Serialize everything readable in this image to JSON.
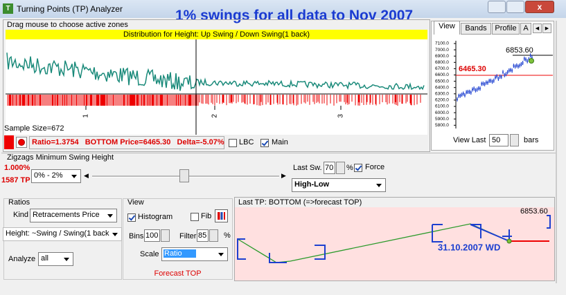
{
  "window": {
    "title": "Turning Points (TP) Analyzer"
  },
  "heading": "1% swings for all data to Nov 2007",
  "distribution": {
    "hint": "Drag mouse to choose active zones",
    "title": "Distribution for Height: Up Swing / Down Swing(1 back)",
    "axis_labels": [
      "1",
      "2",
      "3"
    ],
    "sample_size": "Sample Size=672",
    "status": "Ratio=1.3754   BOTTOM Price=6465.30   Delta=-5.07%",
    "lbc": "LBC",
    "main": "Main"
  },
  "right_panel": {
    "tabs": [
      "View",
      "Bands",
      "Profile",
      "A"
    ],
    "y_labels": [
      "7100.0",
      "7000.0",
      "6900.0",
      "6800.0",
      "6700.0",
      "6600.0",
      "6500.0",
      "6400.0",
      "6300.0",
      "6200.0",
      "6100.0",
      "6000.0",
      "5900.0",
      "5800.0"
    ],
    "top_price": "6853.60",
    "bottom_price": "6465.30",
    "view_last": "View Last",
    "bars_value": "50",
    "bars": "bars"
  },
  "zigzag": {
    "title": "Zigzags Minimum Swing Height",
    "percent": "1.000%",
    "tp_count": "1587 TP",
    "range": "0% - 2%",
    "last_sw": "Last Sw.",
    "last_sw_value": "70",
    "percent_sign": "%",
    "force": "Force",
    "mode": "High-Low"
  },
  "ratios": {
    "title": "Ratios",
    "kind_label": "Kind",
    "kind": "Retracements Price",
    "height": "Height: ~Swing / Swing(1 back",
    "analyze_label": "Analyze",
    "analyze": "all"
  },
  "view": {
    "title": "View",
    "histogram": "Histogram",
    "fib": "Fib",
    "bins_label": "Bins",
    "bins": "100",
    "filter_label": "Filter",
    "filter": "85",
    "percent_sign": "%",
    "scale_label": "Scale",
    "scale": "Ratio",
    "forecast": "Forecast TOP"
  },
  "forecast_panel": {
    "title": "Last TP: BOTTOM (=>forecast TOP)",
    "price": "6853.60",
    "date": "31.10.2007 WD"
  }
}
